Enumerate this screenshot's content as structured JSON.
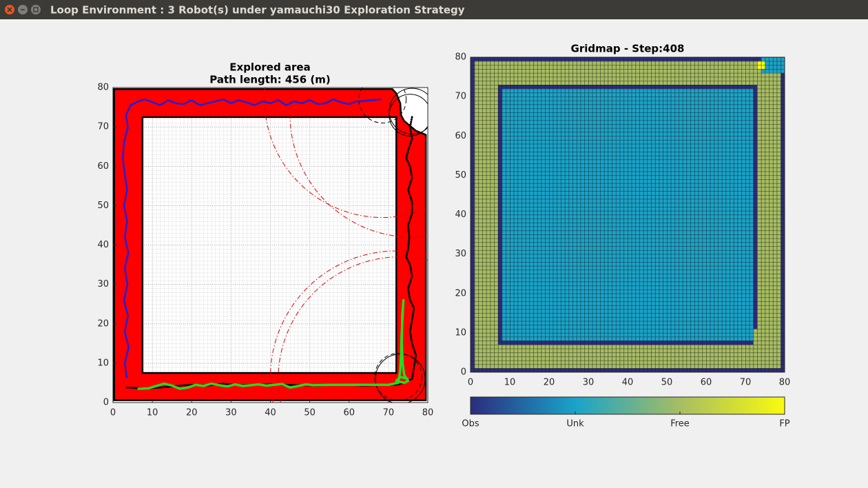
{
  "window_title": "Loop Environment : 3 Robot(s) under yamauchi30 Exploration Strategy",
  "chart_data": [
    {
      "type": "map",
      "title": "Explored area",
      "subtitle": "Path length: 456 (m)",
      "xlim": [
        0,
        80
      ],
      "ylim": [
        0,
        80
      ],
      "xticks": [
        0,
        10,
        20,
        30,
        40,
        50,
        60,
        70,
        80
      ],
      "yticks": [
        0,
        10,
        20,
        30,
        40,
        50,
        60,
        70,
        80
      ],
      "grid": true,
      "area_color": "#ff0000",
      "explored_area": {
        "outer": {
          "x": [
            0.3,
            79.5,
            79.5,
            77,
            74,
            73.2,
            73,
            72,
            71,
            0.3
          ],
          "y": [
            0.6,
            0.6,
            68,
            69,
            71.5,
            73,
            76,
            78.5,
            79.6,
            79.6
          ]
        },
        "inner": {
          "x": [
            7.5,
            72,
            72,
            7.5
          ],
          "y": [
            7.5,
            7.5,
            72.5,
            72.5
          ]
        }
      },
      "series": [
        {
          "color": "#1f1fd6",
          "x": [
            3.5,
            3.0,
            4.0,
            3.0,
            3.8,
            2.8,
            3.7,
            3.0,
            3.9,
            3.0,
            3.6,
            2.8,
            3.6,
            3.0,
            2.5,
            2.8,
            3.8,
            3.3,
            4.5,
            6.5,
            8,
            10,
            12,
            14,
            16,
            18,
            20,
            22,
            24,
            26,
            28,
            30,
            32,
            34,
            36,
            38,
            40,
            42,
            44,
            46,
            48,
            50,
            52,
            54,
            56,
            58,
            60,
            62,
            64,
            66,
            68
          ],
          "y": [
            6.5,
            10,
            14,
            18,
            22,
            26,
            30,
            34,
            38,
            42,
            46,
            50,
            54,
            58,
            62,
            66,
            70,
            73,
            75.5,
            76.5,
            77,
            76.3,
            75.5,
            76.8,
            76,
            75.8,
            76.8,
            75.5,
            76,
            76.5,
            77,
            76,
            76.8,
            76.2,
            75.5,
            76.5,
            76,
            76.8,
            75.5,
            76.5,
            76,
            76.8,
            75.8,
            76,
            77,
            76.2,
            75.8,
            76.5,
            76.6,
            76.8,
            77
          ]
        },
        {
          "color": "#000000",
          "x": [
            76,
            75.5,
            76,
            75,
            74.5,
            75.5,
            76,
            75,
            76,
            76,
            75,
            75.3,
            75,
            74.5,
            75.5,
            76,
            75,
            75.5,
            76.5,
            76,
            75.5,
            76,
            77,
            76.5,
            76,
            74,
            72,
            68,
            64,
            60,
            56,
            52,
            48,
            44,
            40,
            36,
            32,
            28,
            24,
            20,
            16,
            12,
            8,
            3.5
          ],
          "y": [
            72.5,
            70,
            67,
            64,
            62,
            60,
            57,
            54,
            51,
            48,
            45,
            42,
            39,
            37,
            35,
            32,
            29,
            26,
            24,
            21,
            18,
            15,
            12,
            9,
            6,
            5,
            4.5,
            4.5,
            4.3,
            4.5,
            4.6,
            4.3,
            4.4,
            4.5,
            4.6,
            4.5,
            4.4,
            4.8,
            4.3,
            4.5,
            4.2,
            3.8,
            3.6,
            3.8
          ]
        },
        {
          "color": "#22dd22",
          "x": [
            6.5,
            9,
            11,
            13,
            15,
            17,
            19,
            21,
            23,
            25,
            27,
            29,
            31,
            33,
            35,
            37,
            39,
            41,
            43,
            45,
            47,
            49,
            51,
            55,
            60,
            65,
            70,
            72.5,
            73,
            73.2,
            73.3,
            73.5,
            73.8,
            73.5,
            73.4,
            73.6,
            74,
            75,
            74,
            72,
            73,
            75
          ],
          "y": [
            3.5,
            3.6,
            4.2,
            4.8,
            4.3,
            3.5,
            3.8,
            4.5,
            4.2,
            4.8,
            4.4,
            4.1,
            4.6,
            4.2,
            4.4,
            4.6,
            4.3,
            4.5,
            4.7,
            3.8,
            4.2,
            4.6,
            4.4,
            4.5,
            4.5,
            4.5,
            4.5,
            5,
            8,
            12,
            16,
            20,
            26,
            22,
            15,
            10,
            7,
            5.5,
            5,
            5.5,
            6.5,
            6
          ]
        }
      ],
      "circles": [
        {
          "x": 68.5,
          "y": 77,
          "r": 6,
          "color": "#000000",
          "dash": "dashed"
        },
        {
          "x": 75.5,
          "y": 73,
          "r": 5.3,
          "color": "#000000",
          "dash": "solid"
        },
        {
          "x": 76,
          "y": 74,
          "r": 5.8,
          "color": "#000000",
          "dash": "solid"
        },
        {
          "x": 72.5,
          "y": 6.5,
          "r": 6,
          "color": "#000000",
          "dash": "dashed"
        },
        {
          "x": 73,
          "y": 6,
          "r": 6.3,
          "color": "#000000",
          "dash": "solid"
        },
        {
          "x": 68.5,
          "y": 77,
          "r": 30,
          "color": "#e00000",
          "dash": "dashdot"
        },
        {
          "x": 76,
          "y": 73,
          "r": 31,
          "color": "#e00000",
          "dash": "dashdot"
        },
        {
          "x": 73,
          "y": 6,
          "r": 31,
          "color": "#e00000",
          "dash": "dashdot"
        },
        {
          "x": 72,
          "y": 6.5,
          "r": 32,
          "color": "#e00000",
          "dash": "dashdot"
        }
      ]
    },
    {
      "type": "gridmap",
      "title": "Gridmap - Step:408",
      "xlim": [
        0,
        80
      ],
      "ylim": [
        0,
        80
      ],
      "xticks": [
        0,
        10,
        20,
        30,
        40,
        50,
        60,
        70,
        80
      ],
      "yticks": [
        0,
        10,
        20,
        30,
        40,
        50,
        60,
        70,
        80
      ],
      "regions": [
        {
          "x": [
            0,
            80
          ],
          "y": [
            0,
            80
          ],
          "value": 0
        },
        {
          "x": [
            1,
            79
          ],
          "y": [
            1,
            79
          ],
          "value": 2
        },
        {
          "x": [
            7,
            72
          ],
          "y": [
            7,
            73
          ],
          "value": 0
        },
        {
          "x": [
            72,
            73
          ],
          "y": [
            11,
            73
          ],
          "value": 0
        },
        {
          "x": [
            8,
            72
          ],
          "y": [
            8,
            72
          ],
          "value": 1
        },
        {
          "x": [
            74,
            80
          ],
          "y": [
            76,
            80
          ],
          "value": 1
        },
        {
          "x": [
            73,
            75
          ],
          "y": [
            77,
            79
          ],
          "value": 3
        }
      ],
      "colorbar": {
        "clim": [
          0,
          3
        ],
        "colors": [
          "#2b2c7d",
          "#1aa3c9",
          "#a7bd62",
          "#f9fb0e"
        ],
        "ticks": [
          {
            "value": 0,
            "label": "Obs"
          },
          {
            "value": 1,
            "label": "Unk"
          },
          {
            "value": 2,
            "label": "Free"
          },
          {
            "value": 3,
            "label": "FP"
          }
        ]
      }
    }
  ]
}
